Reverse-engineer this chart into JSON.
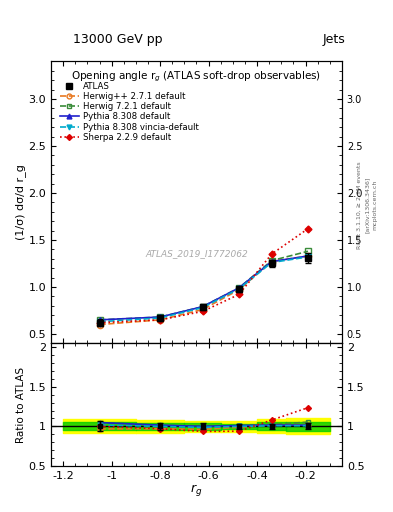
{
  "header_title": "13000 GeV pp",
  "jets_label": "Jets",
  "plot_title": "Opening angle r$_g$ (ATLAS soft-drop observables)",
  "ylabel_main": "(1/σ) dσ/d r_g",
  "ylabel_ratio": "Ratio to ATLAS",
  "xlabel": "r$_g$",
  "watermark": "ATLAS_2019_I1772062",
  "rivet_text": "Rivet 3.1.10, ≥ 2.9M events",
  "arxiv_text": "[arXiv:1306.3436]",
  "mcplots_text": "mcplots.cern.ch",
  "x_edges": [
    -1.2,
    -0.9,
    -0.7,
    -0.55,
    -0.4,
    -0.28,
    -0.1
  ],
  "x_centers": [
    -1.05,
    -0.8,
    -0.625,
    -0.475,
    -0.34,
    -0.19
  ],
  "atlas_y": [
    0.62,
    0.67,
    0.79,
    0.98,
    1.25,
    1.31
  ],
  "atlas_yerr": [
    0.04,
    0.03,
    0.03,
    0.03,
    0.04,
    0.05
  ],
  "herwig_pp_y": [
    0.6,
    0.65,
    0.76,
    0.97,
    1.27,
    1.33
  ],
  "herwig_72_y": [
    0.65,
    0.68,
    0.79,
    0.99,
    1.28,
    1.38
  ],
  "pythia_308_y": [
    0.65,
    0.68,
    0.79,
    0.99,
    1.27,
    1.33
  ],
  "pythia_vincia_y": [
    0.63,
    0.67,
    0.78,
    0.98,
    1.26,
    1.32
  ],
  "sherpa_y": [
    0.62,
    0.65,
    0.74,
    0.92,
    1.35,
    1.62
  ],
  "atlas_band_green": [
    0.05,
    0.04,
    0.04,
    0.03,
    0.05,
    0.06
  ],
  "atlas_band_yellow": [
    0.09,
    0.08,
    0.07,
    0.07,
    0.09,
    0.1
  ],
  "color_atlas": "#000000",
  "color_herwig_pp": "#e87820",
  "color_herwig_72": "#3a8c3a",
  "color_pythia_308": "#2020cc",
  "color_pythia_vincia": "#00aacc",
  "color_sherpa": "#dd0000",
  "color_band_green": "#00cc00",
  "color_band_yellow": "#ffff00",
  "ylim_main": [
    0.4,
    3.4
  ],
  "ylim_ratio": [
    0.5,
    2.05
  ],
  "yticks_main": [
    0.5,
    1.0,
    1.5,
    2.0,
    2.5,
    3.0
  ],
  "yticks_ratio": [
    0.5,
    1.0,
    1.5,
    2.0
  ],
  "xticks": [
    -1.2,
    -1.0,
    -0.8,
    -0.6,
    -0.4,
    -0.2
  ],
  "xticklabels": [
    "-1.2",
    "-1",
    "-0.8",
    "-0.6",
    "-0.4",
    "-0.2"
  ]
}
